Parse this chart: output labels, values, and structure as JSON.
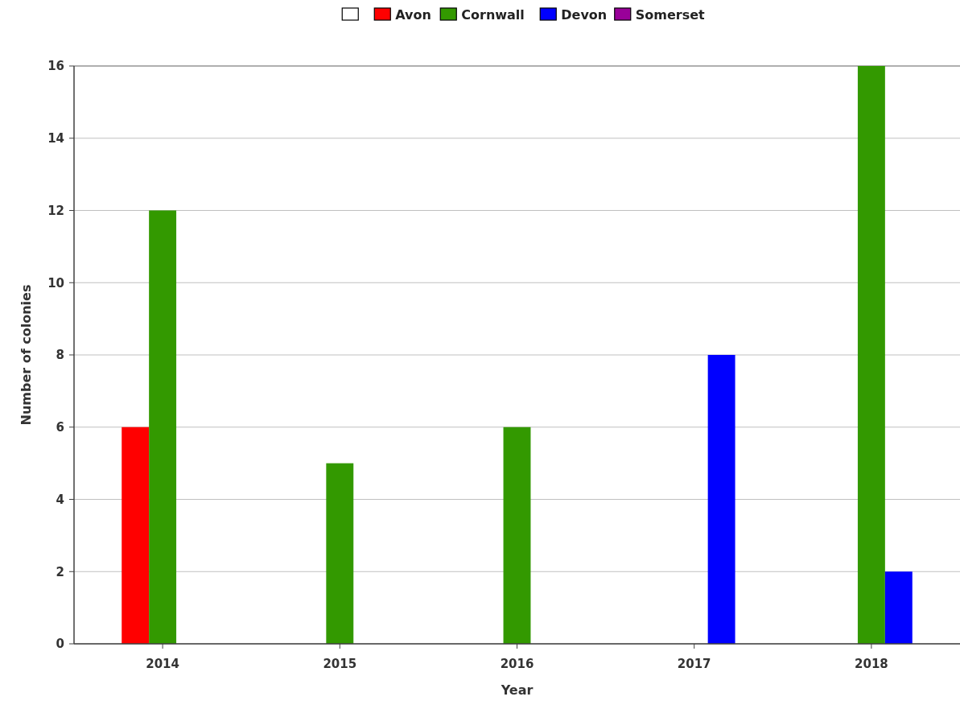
{
  "chart_data": {
    "type": "bar",
    "xlabel": "Year",
    "ylabel": "Number of colonies",
    "categories": [
      "2014",
      "2015",
      "2016",
      "2017",
      "2018"
    ],
    "series": [
      {
        "color": "#ffffff",
        "values": [
          null,
          null,
          null,
          null,
          null
        ]
      },
      {
        "name": "Avon",
        "color": "#ff0000",
        "values": [
          6,
          null,
          null,
          null,
          null
        ]
      },
      {
        "name": "Cornwall",
        "color": "#339900",
        "values": [
          12,
          5,
          6,
          null,
          16
        ]
      },
      {
        "name": "Devon",
        "color": "#0000ff",
        "values": [
          null,
          null,
          null,
          8,
          2
        ]
      },
      {
        "name": "Somerset",
        "color": "#990099",
        "values": [
          null,
          null,
          null,
          null,
          null
        ]
      }
    ],
    "ylim": [
      0,
      16
    ],
    "yticks": [
      0,
      2,
      4,
      6,
      8,
      10,
      12,
      14,
      16
    ],
    "grid": "y",
    "legend": "top"
  }
}
